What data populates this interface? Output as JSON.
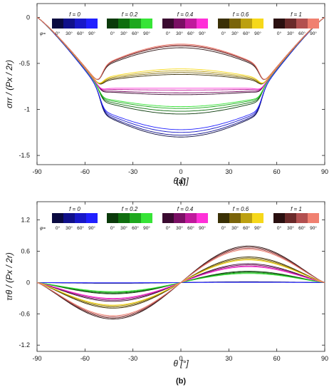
{
  "chart_data": [
    {
      "type": "line",
      "panel_label": "(a)",
      "xlabel": "θ [°]",
      "ylabel": "σrr / (Px / 2r)",
      "xlim": [
        -90,
        90
      ],
      "ylim": [
        -1.6,
        0.15
      ],
      "xticks": [
        -90,
        -60,
        -30,
        0,
        30,
        60,
        90
      ],
      "yticks": [
        0,
        -0.5,
        -1,
        -1.5
      ],
      "ytick_labels": [
        "0",
        "-0.5",
        "-1",
        "-1.5"
      ],
      "grid": false,
      "legend": {
        "placement": "top",
        "phi_label": "φ=",
        "phi_ticks": [
          "0°",
          "30°",
          "60°",
          "90°"
        ],
        "groups": [
          {
            "f_label": "f = 0",
            "colors": [
              "#0a0a40",
              "#10108a",
              "#1818c8",
              "#2020ff"
            ]
          },
          {
            "f_label": "f = 0.2",
            "colors": [
              "#0a3a0a",
              "#0f6e0f",
              "#1ea81e",
              "#36e436"
            ]
          },
          {
            "f_label": "f = 0.4",
            "colors": [
              "#3a0a30",
              "#7a0f64",
              "#c01a9c",
              "#ff30d8"
            ]
          },
          {
            "f_label": "f = 0.6",
            "colors": [
              "#3a3005",
              "#7a640a",
              "#bca010",
              "#f6d81a"
            ]
          },
          {
            "f_label": "f = 1",
            "colors": [
              "#2a1010",
              "#6a2a2a",
              "#b25050",
              "#f08070"
            ]
          }
        ]
      },
      "series": [
        {
          "f": "0",
          "phi": "0°",
          "color": "#0a0a40",
          "center_value": -1.3,
          "cross_value": -0.8
        },
        {
          "f": "0",
          "phi": "30°",
          "color": "#10108a",
          "center_value": -1.28,
          "cross_value": -0.8
        },
        {
          "f": "0",
          "phi": "60°",
          "color": "#1818c8",
          "center_value": -1.25,
          "cross_value": -0.8
        },
        {
          "f": "0",
          "phi": "90°",
          "color": "#2020ff",
          "center_value": -1.22,
          "cross_value": -0.8
        },
        {
          "f": "0.2",
          "phi": "0°",
          "color": "#0a3a0a",
          "center_value": -1.05,
          "cross_value": -0.78
        },
        {
          "f": "0.2",
          "phi": "30°",
          "color": "#0f6e0f",
          "center_value": -1.02,
          "cross_value": -0.78
        },
        {
          "f": "0.2",
          "phi": "60°",
          "color": "#1ea81e",
          "center_value": -0.99,
          "cross_value": -0.78
        },
        {
          "f": "0.2",
          "phi": "90°",
          "color": "#36e436",
          "center_value": -0.97,
          "cross_value": -0.78
        },
        {
          "f": "0.4",
          "phi": "0°",
          "color": "#3a0a30",
          "center_value": -0.84,
          "cross_value": -0.77
        },
        {
          "f": "0.4",
          "phi": "30°",
          "color": "#7a0f64",
          "center_value": -0.82,
          "cross_value": -0.77
        },
        {
          "f": "0.4",
          "phi": "60°",
          "color": "#c01a9c",
          "center_value": -0.79,
          "cross_value": -0.77
        },
        {
          "f": "0.4",
          "phi": "90°",
          "color": "#ff30d8",
          "center_value": -0.77,
          "cross_value": -0.77
        },
        {
          "f": "0.6",
          "phi": "0°",
          "color": "#3a3005",
          "center_value": -0.62,
          "cross_value": -0.76
        },
        {
          "f": "0.6",
          "phi": "30°",
          "color": "#7a640a",
          "center_value": -0.6,
          "cross_value": -0.76
        },
        {
          "f": "0.6",
          "phi": "60°",
          "color": "#bca010",
          "center_value": -0.58,
          "cross_value": -0.76
        },
        {
          "f": "0.6",
          "phi": "90°",
          "color": "#f6d81a",
          "center_value": -0.56,
          "cross_value": -0.76
        },
        {
          "f": "1",
          "phi": "0°",
          "color": "#2a1010",
          "center_value": -0.33,
          "cross_value": -0.75
        },
        {
          "f": "1",
          "phi": "30°",
          "color": "#6a2a2a",
          "center_value": -0.31,
          "cross_value": -0.75
        },
        {
          "f": "1",
          "phi": "60°",
          "color": "#b25050",
          "center_value": -0.3,
          "cross_value": -0.75
        },
        {
          "f": "1",
          "phi": "90°",
          "color": "#f08070",
          "center_value": -0.29,
          "cross_value": -0.75
        }
      ]
    },
    {
      "type": "line",
      "panel_label": "(b)",
      "xlabel": "θ [°]",
      "ylabel": "τrθ / (Px / 2r)",
      "xlim": [
        -90,
        90
      ],
      "ylim": [
        -1.32,
        1.55
      ],
      "xticks": [
        -90,
        -60,
        -30,
        0,
        30,
        60,
        90
      ],
      "yticks": [
        1.2,
        0.6,
        0,
        -0.6,
        -1.2
      ],
      "ytick_labels": [
        "1.2",
        "0.6",
        "0",
        "-0.6",
        "-1.2"
      ],
      "grid": false,
      "legend": {
        "placement": "top",
        "phi_label": "φ=",
        "phi_ticks": [
          "0°",
          "30°",
          "60°",
          "90°"
        ],
        "groups": [
          {
            "f_label": "f = 0",
            "colors": [
              "#0a0a40",
              "#10108a",
              "#1818c8",
              "#2020ff"
            ]
          },
          {
            "f_label": "f = 0.2",
            "colors": [
              "#0a3a0a",
              "#0f6e0f",
              "#1ea81e",
              "#36e436"
            ]
          },
          {
            "f_label": "f = 0.4",
            "colors": [
              "#3a0a30",
              "#7a0f64",
              "#c01a9c",
              "#ff30d8"
            ]
          },
          {
            "f_label": "f = 0.6",
            "colors": [
              "#3a3005",
              "#7a640a",
              "#bca010",
              "#f6d81a"
            ]
          },
          {
            "f_label": "f = 1",
            "colors": [
              "#2a1010",
              "#6a2a2a",
              "#b25050",
              "#f08070"
            ]
          }
        ]
      },
      "series": [
        {
          "f": "0",
          "phi": "0°",
          "color": "#0a0a40",
          "peak_value": 0.02,
          "peak_theta": 35
        },
        {
          "f": "0",
          "phi": "30°",
          "color": "#10108a",
          "peak_value": 0.015,
          "peak_theta": 35
        },
        {
          "f": "0",
          "phi": "60°",
          "color": "#1818c8",
          "peak_value": 0.01,
          "peak_theta": 35
        },
        {
          "f": "0",
          "phi": "90°",
          "color": "#2020ff",
          "peak_value": 0.005,
          "peak_theta": 35
        },
        {
          "f": "0.2",
          "phi": "0°",
          "color": "#0a3a0a",
          "peak_value": 0.3,
          "peak_theta": 35
        },
        {
          "f": "0.2",
          "phi": "30°",
          "color": "#0f6e0f",
          "peak_value": 0.28,
          "peak_theta": 35
        },
        {
          "f": "0.2",
          "phi": "60°",
          "color": "#1ea81e",
          "peak_value": 0.26,
          "peak_theta": 35
        },
        {
          "f": "0.2",
          "phi": "90°",
          "color": "#36e436",
          "peak_value": 0.24,
          "peak_theta": 35
        },
        {
          "f": "0.4",
          "phi": "0°",
          "color": "#3a0a30",
          "peak_value": 0.5,
          "peak_theta": 35
        },
        {
          "f": "0.4",
          "phi": "30°",
          "color": "#7a0f64",
          "peak_value": 0.47,
          "peak_theta": 35
        },
        {
          "f": "0.4",
          "phi": "60°",
          "color": "#c01a9c",
          "peak_value": 0.44,
          "peak_theta": 35
        },
        {
          "f": "0.4",
          "phi": "90°",
          "color": "#ff30d8",
          "peak_value": 0.42,
          "peak_theta": 35
        },
        {
          "f": "0.6",
          "phi": "0°",
          "color": "#3a3005",
          "peak_value": 0.68,
          "peak_theta": 35
        },
        {
          "f": "0.6",
          "phi": "30°",
          "color": "#7a640a",
          "peak_value": 0.65,
          "peak_theta": 35
        },
        {
          "f": "0.6",
          "phi": "60°",
          "color": "#bca010",
          "peak_value": 0.62,
          "peak_theta": 35
        },
        {
          "f": "0.6",
          "phi": "90°",
          "color": "#f6d81a",
          "peak_value": 0.6,
          "peak_theta": 35
        },
        {
          "f": "1",
          "phi": "0°",
          "color": "#2a1010",
          "peak_value": 0.97,
          "peak_theta": 35
        },
        {
          "f": "1",
          "phi": "30°",
          "color": "#6a2a2a",
          "peak_value": 0.94,
          "peak_theta": 35
        },
        {
          "f": "1",
          "phi": "60°",
          "color": "#b25050",
          "peak_value": 0.91,
          "peak_theta": 35
        },
        {
          "f": "1",
          "phi": "90°",
          "color": "#f08070",
          "peak_value": 0.88,
          "peak_theta": 35
        }
      ]
    }
  ]
}
